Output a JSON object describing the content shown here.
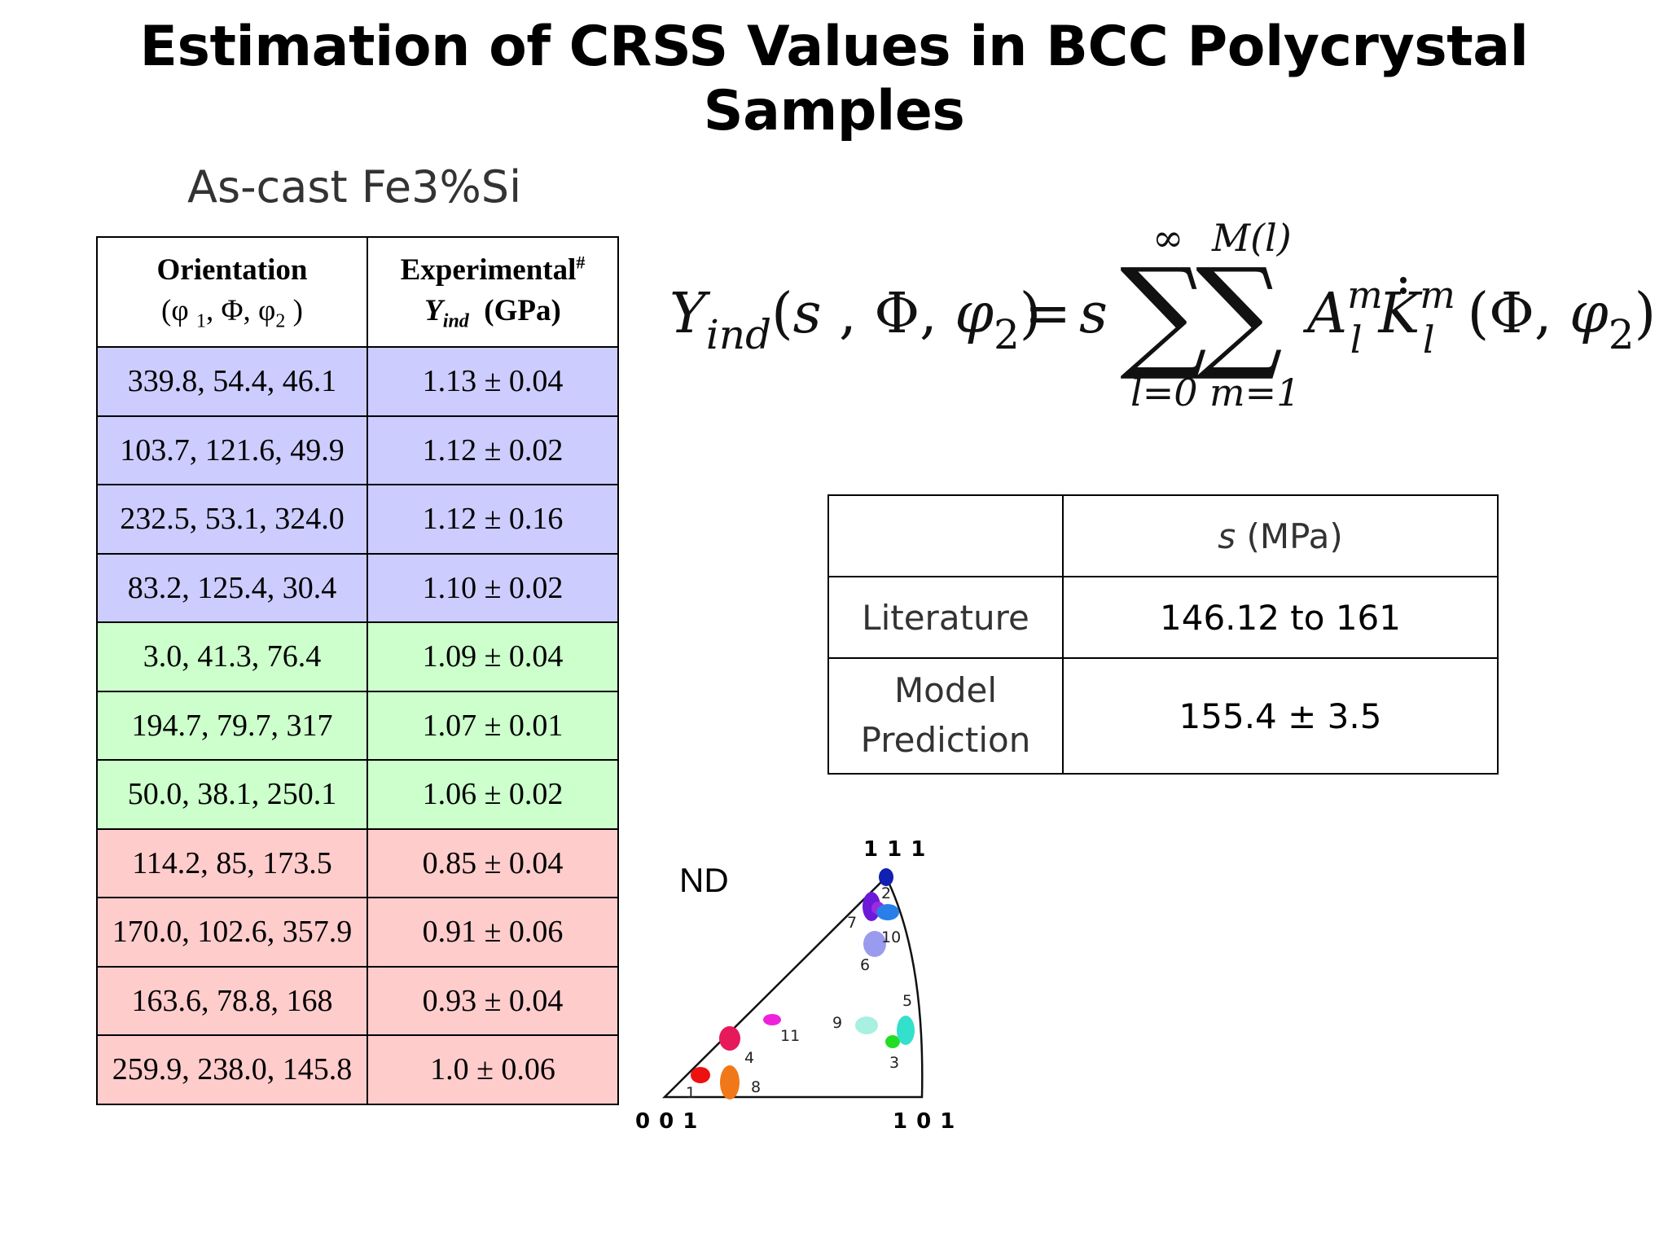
{
  "title": "Estimation of CRSS Values in BCC Polycrystal Samples",
  "subtitle": "As-cast Fe3%Si",
  "orientation_table": {
    "header_col1_line1": "Orientation",
    "header_col1_line2": "(φ 1, Φ, φ2 )",
    "header_col2_line1": "Experimental#",
    "header_col2_line2": "Yind (GPa)",
    "rows": [
      {
        "group": "blue",
        "orientation": "339.8, 54.4, 46.1",
        "value": "1.13 ± 0.04"
      },
      {
        "group": "blue",
        "orientation": "103.7, 121.6, 49.9",
        "value": "1.12 ± 0.02"
      },
      {
        "group": "blue",
        "orientation": "232.5, 53.1, 324.0",
        "value": "1.12 ± 0.16"
      },
      {
        "group": "blue",
        "orientation": "83.2, 125.4, 30.4",
        "value": "1.10 ± 0.02"
      },
      {
        "group": "green",
        "orientation": "3.0, 41.3, 76.4",
        "value": "1.09 ± 0.04"
      },
      {
        "group": "green",
        "orientation": "194.7, 79.7, 317",
        "value": "1.07 ± 0.01"
      },
      {
        "group": "green",
        "orientation": "50.0, 38.1, 250.1",
        "value": "1.06 ± 0.02"
      },
      {
        "group": "red",
        "orientation": "114.2, 85, 173.5",
        "value": "0.85 ± 0.04"
      },
      {
        "group": "red",
        "orientation": "170.0, 102.6, 357.9",
        "value": "0.91 ± 0.06"
      },
      {
        "group": "red",
        "orientation": "163.6, 78.8, 168",
        "value": "0.93 ± 0.04"
      },
      {
        "group": "red",
        "orientation": "259.9, 238.0, 145.8",
        "value": "1.0 ± 0.06"
      }
    ]
  },
  "formula": {
    "text": "Yind(s, Φ, φ2) = s Σ(l=0..∞) Σ(m=1..M(l)) Al^m K̇l^m (Φ, φ2)",
    "upper_l": "∞",
    "upper_m": "M(l)",
    "lower_l": "l=0",
    "lower_m": "m=1"
  },
  "s_table": {
    "header": "s (MPa)",
    "rows": [
      {
        "label": "Literature",
        "value": "146.12 to 161"
      },
      {
        "label_line1": "Model",
        "label_line2": "Prediction",
        "value": "155.4 ± 3.5"
      }
    ]
  },
  "ipf": {
    "nd_label": "ND",
    "corner_111": "1 1 1",
    "corner_001": "0 0 1",
    "corner_101": "1 0 1",
    "points": [
      {
        "id": "1",
        "color": "#ee1111"
      },
      {
        "id": "2",
        "color": "#6a1ad8"
      },
      {
        "id": "3",
        "color": "#22dd22"
      },
      {
        "id": "4",
        "color": "#e6195a"
      },
      {
        "id": "5",
        "color": "#33e0cc"
      },
      {
        "id": "6",
        "color": "#9a9aee"
      },
      {
        "id": "7",
        "color": "#9b2ae0"
      },
      {
        "id": "8",
        "color": "#f07818"
      },
      {
        "id": "9",
        "color": "#a8f0e0"
      },
      {
        "id": "10",
        "color": "#2a7ee8"
      },
      {
        "id": "11",
        "color": "#ee22dd"
      },
      {
        "id": "111",
        "color": "#1020b0"
      }
    ]
  }
}
